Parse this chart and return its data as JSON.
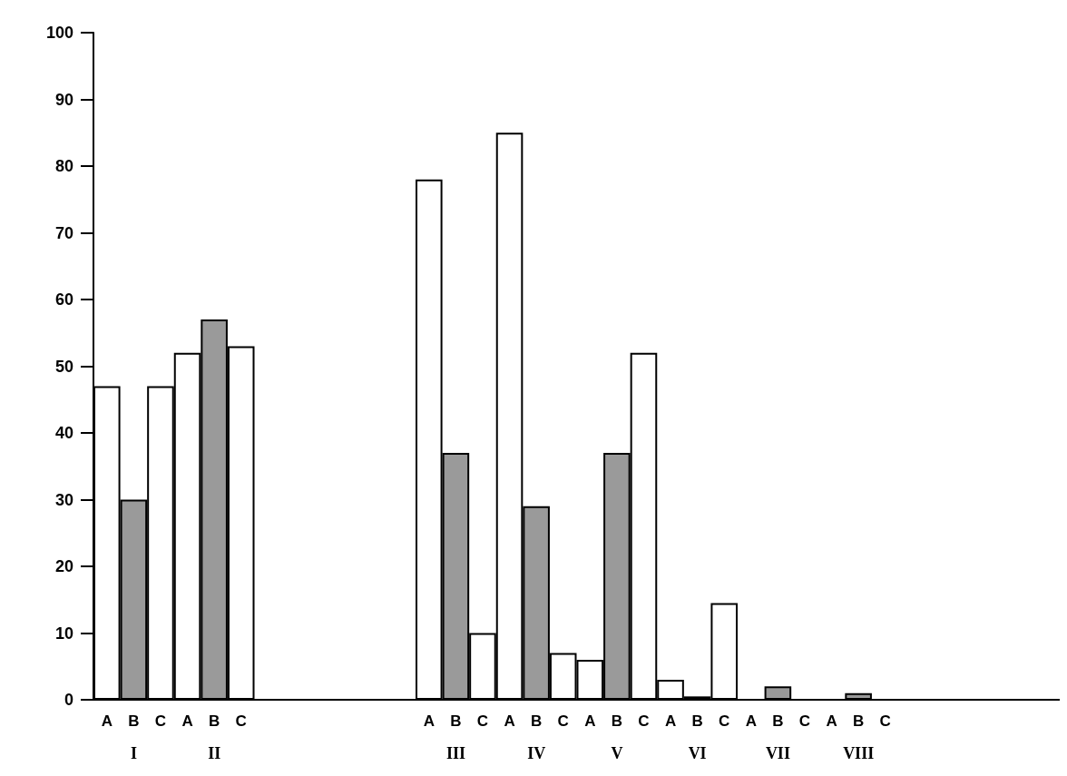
{
  "chart_data": {
    "type": "bar",
    "categories": [
      "I",
      "II",
      null,
      null,
      "III",
      "IV",
      "V",
      "VI",
      "VII",
      "VIII",
      null,
      null
    ],
    "series": [
      {
        "name": "A",
        "color": "#ffffff",
        "values": [
          47,
          52,
          null,
          null,
          78,
          85,
          6,
          3,
          0,
          0,
          null,
          null
        ]
      },
      {
        "name": "B",
        "color": "#9a9a9a",
        "values": [
          30,
          57,
          null,
          null,
          37,
          29,
          37,
          0.5,
          2,
          1,
          null,
          null
        ]
      },
      {
        "name": "C",
        "color": "#ffffff",
        "values": [
          47,
          53,
          null,
          null,
          10,
          7,
          52,
          14.5,
          0,
          0,
          null,
          null
        ]
      }
    ],
    "ylim": [
      0,
      100
    ],
    "yticks": [
      0,
      10,
      20,
      30,
      40,
      50,
      60,
      70,
      80,
      90,
      100
    ],
    "grid": false,
    "legend": false
  }
}
